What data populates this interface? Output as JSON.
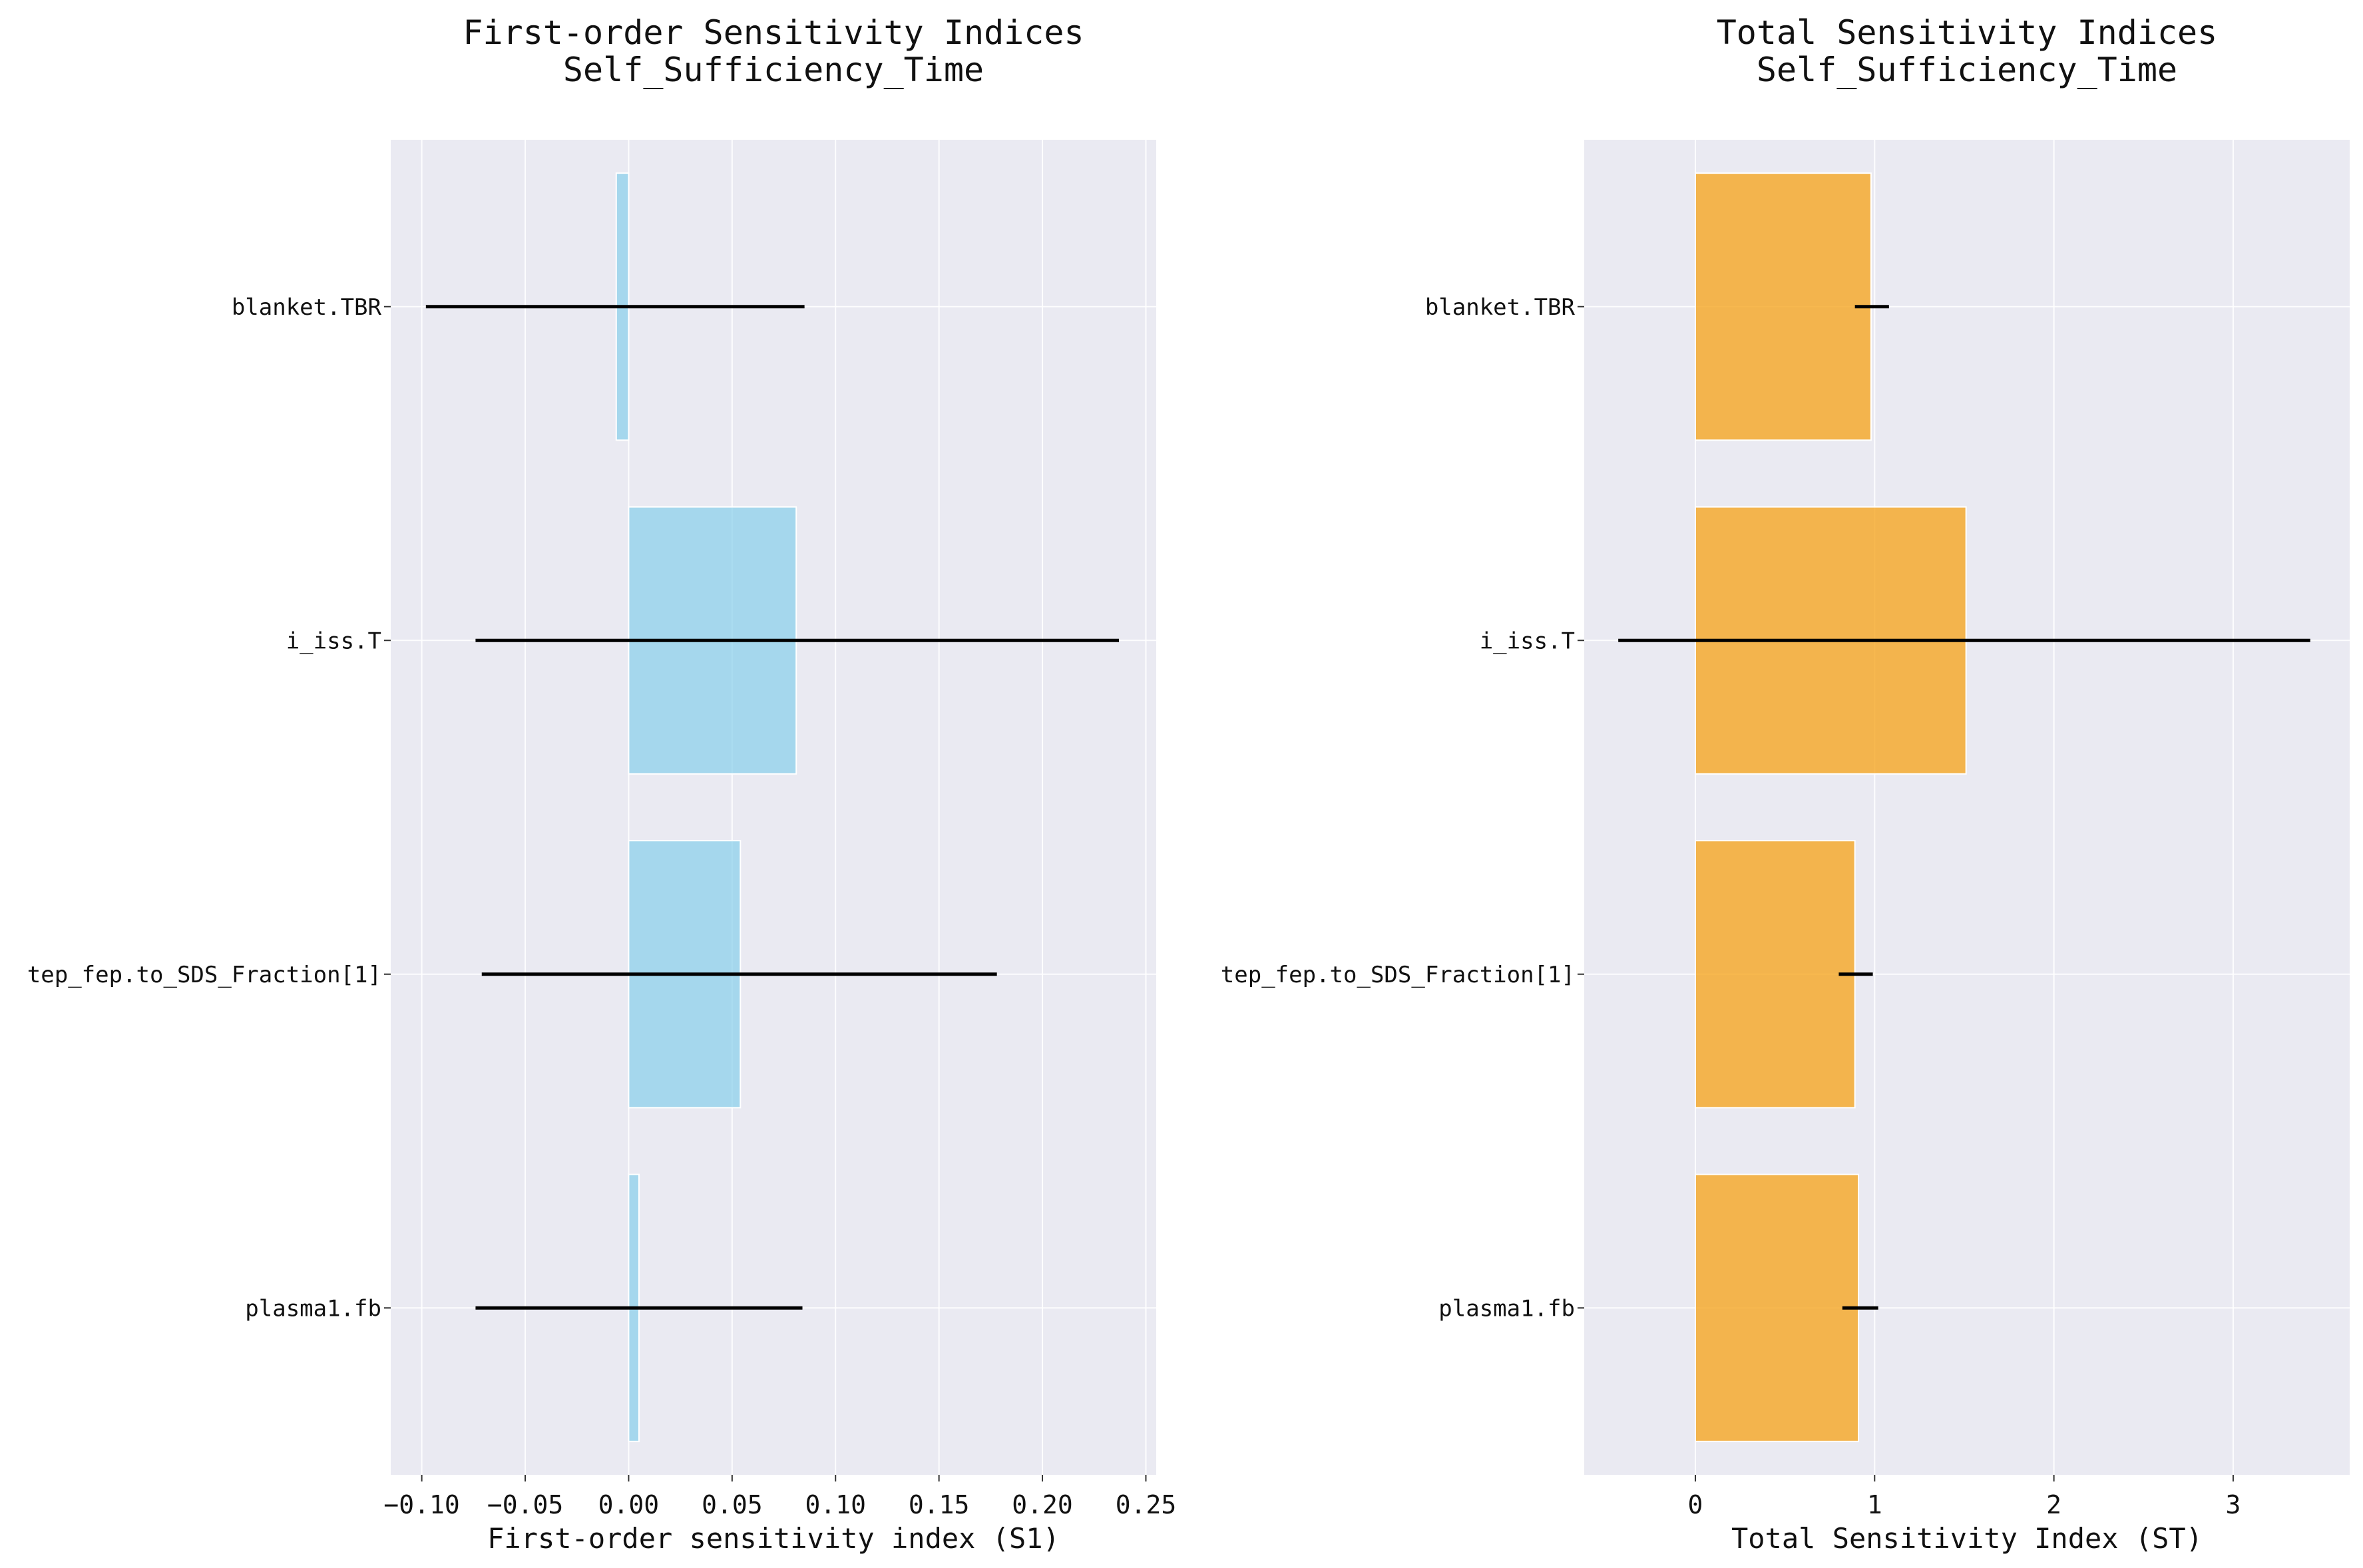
{
  "colors": {
    "plot_bg": "#eaeaf2",
    "grid": "#ffffff",
    "s1_bar": "#87ceeb",
    "st_bar": "#f5a623",
    "errorbar": "#000000"
  },
  "chart_data": [
    {
      "type": "bar",
      "orientation": "horizontal",
      "title_lines": [
        "First-order Sensitivity Indices",
        "Self_Sufficiency_Time"
      ],
      "xlabel": "First-order sensitivity index (S1)",
      "ylabel": "",
      "categories": [
        "blanket.TBR",
        "i_iss.T",
        "tep_fep.to_SDS_Fraction[1]",
        "plasma1.fb"
      ],
      "values": [
        -0.006,
        0.081,
        0.054,
        0.005
      ],
      "error_low": [
        -0.098,
        -0.074,
        -0.071,
        -0.074
      ],
      "error_high": [
        0.085,
        0.237,
        0.178,
        0.084
      ],
      "xlim": [
        -0.115,
        0.255
      ],
      "xticks": [
        -0.1,
        -0.05,
        0.0,
        0.05,
        0.1,
        0.15,
        0.2,
        0.25
      ],
      "xtick_labels": [
        "−0.10",
        "−0.05",
        "0.00",
        "0.05",
        "0.10",
        "0.15",
        "0.20",
        "0.25"
      ],
      "grid": true,
      "color_key": "s1_bar"
    },
    {
      "type": "bar",
      "orientation": "horizontal",
      "title_lines": [
        "Total Sensitivity Indices",
        "Self_Sufficiency_Time"
      ],
      "xlabel": "Total Sensitivity Index (ST)",
      "ylabel": "",
      "categories": [
        "blanket.TBR",
        "i_iss.T",
        "tep_fep.to_SDS_Fraction[1]",
        "plasma1.fb"
      ],
      "values": [
        0.98,
        1.51,
        0.89,
        0.91
      ],
      "error_low": [
        0.89,
        -0.43,
        0.8,
        0.82
      ],
      "error_high": [
        1.08,
        3.43,
        0.99,
        1.02
      ],
      "xlim": [
        -0.62,
        3.65
      ],
      "xticks": [
        0,
        1,
        2,
        3
      ],
      "xtick_labels": [
        "0",
        "1",
        "2",
        "3"
      ],
      "grid": true,
      "color_key": "st_bar"
    }
  ]
}
